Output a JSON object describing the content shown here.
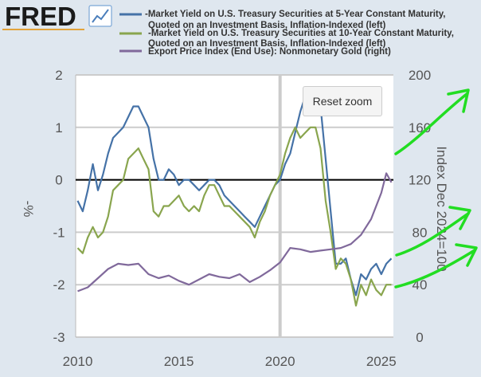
{
  "header": {
    "logo_text": "FRED",
    "logo_icon": "fred-chart-icon"
  },
  "reset_zoom_label": "Reset zoom",
  "colors": {
    "background": "#dfe7ef",
    "plot_background": "#ffffff",
    "series_5yr": "#4572a7",
    "series_10yr": "#89a54e",
    "series_gold": "#80699b",
    "zero_line": "#000000",
    "annotation_arrows": "#22dd22"
  },
  "chart_data": {
    "type": "line",
    "title": "",
    "xlabel": "",
    "ylabel": "-%",
    "y2label": "Index Dec 2024=100",
    "xlim": [
      2009.9,
      2025.6
    ],
    "ylim": [
      -3,
      2
    ],
    "y2lim": [
      0,
      200
    ],
    "x_ticks": [
      "2010",
      "2015",
      "2020",
      "2025"
    ],
    "y_ticks": [
      "2",
      "1",
      "0",
      "-1",
      "-2",
      "-3"
    ],
    "y2_ticks": [
      "200",
      "160",
      "120",
      "80",
      "40",
      "0"
    ],
    "grid": true,
    "legend": "top",
    "zero_line": 0,
    "series": [
      {
        "name": "-Market Yield on U.S. Treasury Securities at 5-Year Constant Maturity, Quoted on an Investment Basis, Inflation-Indexed (left)",
        "axis": "left",
        "x": [
          2010.0,
          2010.25,
          2010.5,
          2010.75,
          2011.0,
          2011.25,
          2011.5,
          2011.75,
          2012.0,
          2012.25,
          2012.5,
          2012.75,
          2013.0,
          2013.25,
          2013.5,
          2013.75,
          2014.0,
          2014.25,
          2014.5,
          2014.75,
          2015.0,
          2015.25,
          2015.5,
          2015.75,
          2016.0,
          2016.25,
          2016.5,
          2016.75,
          2017.0,
          2017.25,
          2017.5,
          2017.75,
          2018.0,
          2018.25,
          2018.5,
          2018.75,
          2019.0,
          2019.25,
          2019.5,
          2019.75,
          2020.0,
          2020.25,
          2020.5,
          2020.75,
          2021.0,
          2021.25,
          2021.5,
          2021.75,
          2022.0,
          2022.25,
          2022.5,
          2022.75,
          2023.0,
          2023.25,
          2023.5,
          2023.75,
          2024.0,
          2024.25,
          2024.5,
          2024.75,
          2025.0,
          2025.25,
          2025.5
        ],
        "values": [
          -0.4,
          -0.6,
          -0.2,
          0.3,
          -0.2,
          0.1,
          0.5,
          0.8,
          0.9,
          1.0,
          1.2,
          1.4,
          1.4,
          1.2,
          1.0,
          0.4,
          0.0,
          0.0,
          0.2,
          0.1,
          -0.1,
          0.0,
          0.0,
          -0.1,
          -0.2,
          -0.1,
          0.0,
          0.0,
          -0.1,
          -0.3,
          -0.4,
          -0.5,
          -0.6,
          -0.7,
          -0.8,
          -0.9,
          -0.7,
          -0.5,
          -0.3,
          -0.1,
          0.0,
          0.3,
          0.5,
          0.9,
          1.3,
          1.6,
          1.7,
          1.7,
          1.4,
          0.4,
          -0.6,
          -1.6,
          -1.6,
          -1.5,
          -1.9,
          -2.2,
          -1.8,
          -1.9,
          -1.7,
          -1.6,
          -1.8,
          -1.6,
          -1.5
        ]
      },
      {
        "name": "-Market Yield on U.S. Treasury Securities at 10-Year Constant Maturity, Quoted on an Investment Basis, Inflation-Indexed (left)",
        "axis": "left",
        "x": [
          2010.0,
          2010.25,
          2010.5,
          2010.75,
          2011.0,
          2011.25,
          2011.5,
          2011.75,
          2012.0,
          2012.25,
          2012.5,
          2012.75,
          2013.0,
          2013.25,
          2013.5,
          2013.75,
          2014.0,
          2014.25,
          2014.5,
          2014.75,
          2015.0,
          2015.25,
          2015.5,
          2015.75,
          2016.0,
          2016.25,
          2016.5,
          2016.75,
          2017.0,
          2017.25,
          2017.5,
          2017.75,
          2018.0,
          2018.25,
          2018.5,
          2018.75,
          2019.0,
          2019.25,
          2019.5,
          2019.75,
          2020.0,
          2020.25,
          2020.5,
          2020.75,
          2021.0,
          2021.25,
          2021.5,
          2021.75,
          2022.0,
          2022.25,
          2022.5,
          2022.75,
          2023.0,
          2023.25,
          2023.5,
          2023.75,
          2024.0,
          2024.25,
          2024.5,
          2024.75,
          2025.0,
          2025.25,
          2025.5
        ],
        "values": [
          -1.3,
          -1.4,
          -1.1,
          -0.9,
          -1.1,
          -1.0,
          -0.7,
          -0.2,
          -0.1,
          0.0,
          0.4,
          0.5,
          0.6,
          0.4,
          0.2,
          -0.6,
          -0.7,
          -0.5,
          -0.5,
          -0.4,
          -0.3,
          -0.5,
          -0.6,
          -0.5,
          -0.6,
          -0.3,
          -0.1,
          -0.1,
          -0.3,
          -0.5,
          -0.5,
          -0.6,
          -0.7,
          -0.8,
          -0.9,
          -1.1,
          -0.8,
          -0.6,
          -0.3,
          -0.1,
          0.1,
          0.5,
          0.8,
          1.0,
          0.8,
          0.9,
          1.0,
          1.0,
          0.6,
          -0.4,
          -1.0,
          -1.7,
          -1.5,
          -1.6,
          -1.9,
          -2.4,
          -2.0,
          -2.2,
          -1.9,
          -2.1,
          -2.2,
          -2.0,
          -2.0
        ]
      },
      {
        "name": "Export Price Index (End Use): Nonmonetary Gold (right)",
        "axis": "right",
        "x": [
          2010.0,
          2010.5,
          2011.0,
          2011.5,
          2012.0,
          2012.5,
          2013.0,
          2013.5,
          2014.0,
          2014.5,
          2015.0,
          2015.5,
          2016.0,
          2016.5,
          2017.0,
          2017.5,
          2018.0,
          2018.5,
          2019.0,
          2019.5,
          2020.0,
          2020.5,
          2021.0,
          2021.5,
          2022.0,
          2022.5,
          2023.0,
          2023.5,
          2024.0,
          2024.5,
          2025.0,
          2025.25,
          2025.5
        ],
        "values": [
          35,
          38,
          45,
          52,
          56,
          55,
          56,
          48,
          45,
          47,
          43,
          40,
          44,
          48,
          46,
          45,
          48,
          42,
          46,
          51,
          57,
          68,
          67,
          65,
          66,
          67,
          68,
          71,
          78,
          90,
          110,
          125,
          118
        ]
      }
    ]
  }
}
